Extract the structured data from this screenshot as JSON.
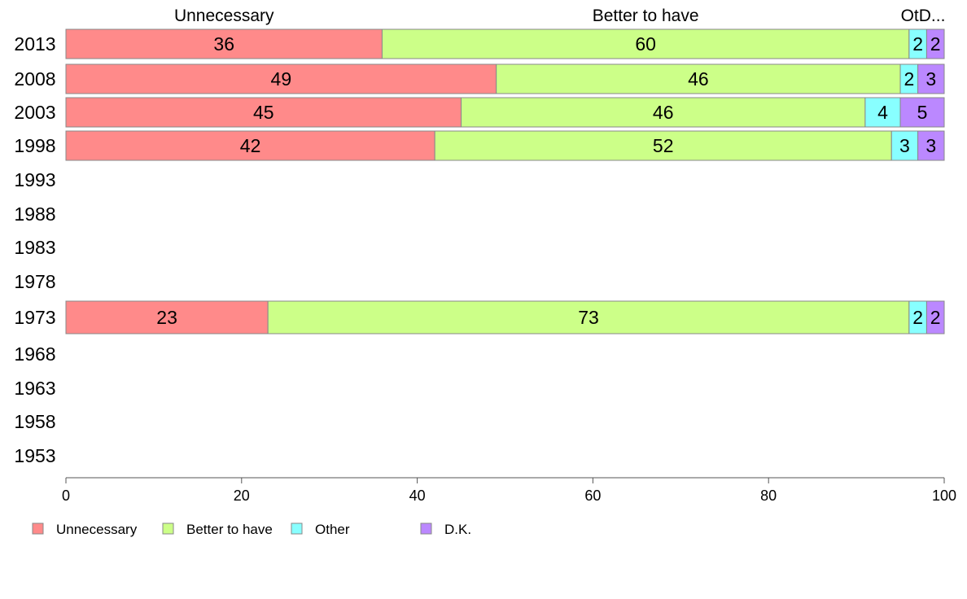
{
  "chart_data": {
    "type": "bar",
    "orientation": "horizontal",
    "stacked": true,
    "categories": [
      "2013",
      "2008",
      "2003",
      "1998",
      "1993",
      "1988",
      "1983",
      "1978",
      "1973",
      "1968",
      "1963",
      "1958",
      "1953"
    ],
    "series": [
      {
        "name": "Unnecessary",
        "color": "#ff8a8a",
        "values": [
          36,
          49,
          45,
          42,
          null,
          null,
          null,
          null,
          23,
          null,
          null,
          null,
          null
        ]
      },
      {
        "name": "Better to have",
        "color": "#ccff88",
        "values": [
          60,
          46,
          46,
          52,
          null,
          null,
          null,
          null,
          73,
          null,
          null,
          null,
          null
        ]
      },
      {
        "name": "Other",
        "color": "#88ffff",
        "values": [
          2,
          2,
          4,
          3,
          null,
          null,
          null,
          null,
          2,
          null,
          null,
          null,
          null
        ]
      },
      {
        "name": "D.K.",
        "color": "#bb88ff",
        "values": [
          2,
          3,
          5,
          3,
          null,
          null,
          null,
          null,
          2,
          null,
          null,
          null,
          null
        ]
      }
    ],
    "top_labels": [
      "Unnecessary",
      "Better to have",
      "OtD..."
    ],
    "x_ticks": [
      0,
      20,
      40,
      60,
      80,
      100
    ],
    "xlim": [
      0,
      100
    ],
    "grid": false,
    "legend_position": "bottom-left"
  }
}
